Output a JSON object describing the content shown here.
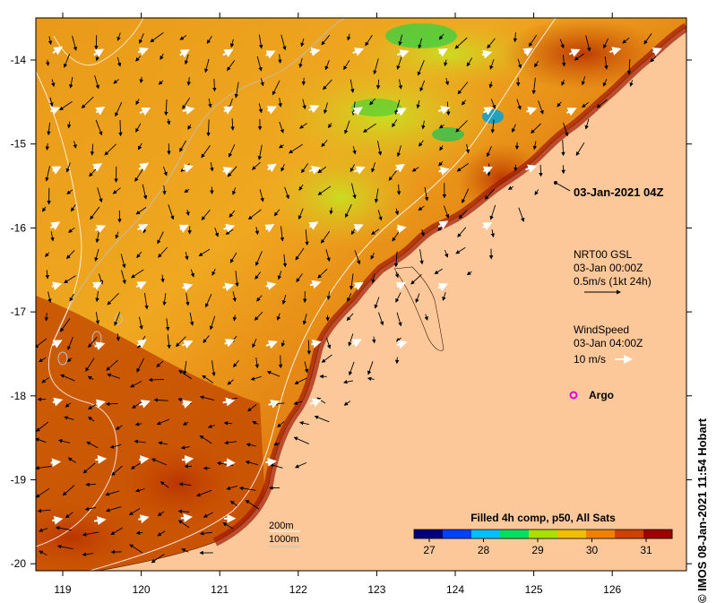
{
  "timestamp": "03-Jan-2021 04Z",
  "legend": {
    "gsl_title": "NRT00 GSL",
    "gsl_time": "03-Jan 00:00Z",
    "gsl_scale": "0.5m/s (1kt 24h)",
    "wind_title": "WindSpeed",
    "wind_time": "03-Jan 04:00Z",
    "wind_scale": "10 m/s",
    "argo": "Argo",
    "depth_200": "200m",
    "depth_1000": "1000m"
  },
  "colorbar": {
    "title": "Filled 4h comp, p50, All Sats",
    "ticks": [
      "27",
      "28",
      "29",
      "30",
      "31"
    ],
    "colors": [
      "#00007f",
      "#0040ff",
      "#00c0ff",
      "#00e060",
      "#a8e000",
      "#f0c000",
      "#f08000",
      "#d04000",
      "#a00000"
    ]
  },
  "axes": {
    "lon_ticks": [
      "119",
      "120",
      "121",
      "122",
      "123",
      "124",
      "125",
      "126"
    ],
    "lat_ticks": [
      "-14",
      "-15",
      "-16",
      "-17",
      "-18",
      "-19",
      "-20"
    ]
  },
  "credit": "© IMOS 08-Jan-2021 11:54 Hobart",
  "colors": {
    "land": "#fcc89a",
    "sea_warm": "#d05a00",
    "sea_mid": "#f09810",
    "sea_cool": "#d8d020",
    "sea_hot": "#a01800"
  }
}
